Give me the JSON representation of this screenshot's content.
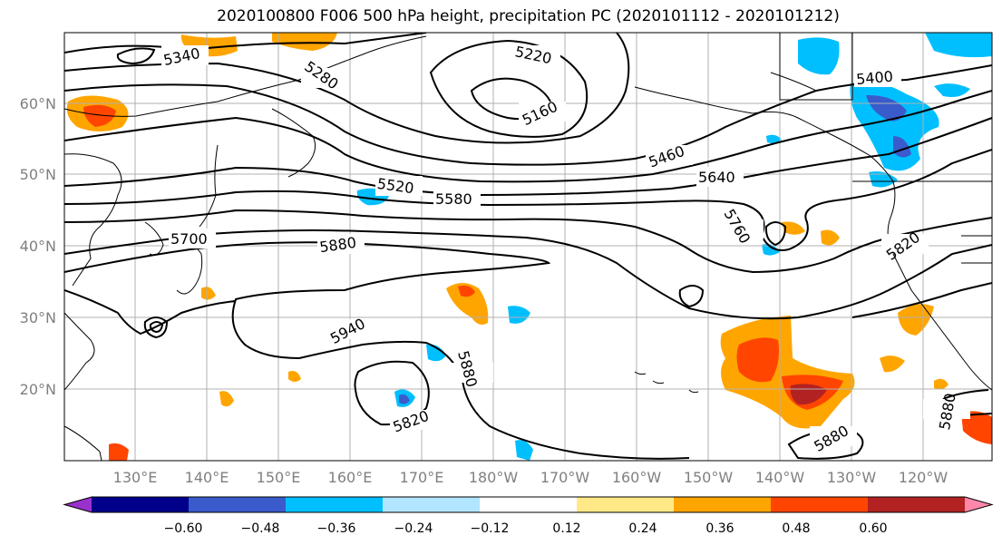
{
  "title": "2020100800 F006 500 hPa height, precipitation PC (2020101112 - 2020101212)",
  "lat_labels": [
    "60°N",
    "50°N",
    "40°N",
    "30°N",
    "20°N"
  ],
  "lon_labels": [
    "130°E",
    "140°E",
    "150°E",
    "160°E",
    "170°E",
    "180°W",
    "170°W",
    "160°W",
    "150°W",
    "140°W",
    "130°W",
    "120°W"
  ],
  "contour_labels": [
    "5340",
    "5280",
    "5220",
    "5160",
    "5400",
    "5460",
    "5640",
    "5520",
    "5580",
    "5760",
    "5700",
    "5880",
    "5820",
    "5940",
    "5880",
    "5820",
    "5880",
    "5880"
  ],
  "colorbar": {
    "colors": [
      "#9932cc",
      "#00008b",
      "#3a5bcc",
      "#00bfff",
      "#b2e5ff",
      "#ffffff",
      "#ffe986",
      "#ffa500",
      "#ff4500",
      "#b22222",
      "#ff88aa"
    ],
    "tick_labels": [
      "−0.60",
      "−0.48",
      "−0.36",
      "−0.24",
      "−0.12",
      "0.12",
      "0.24",
      "0.36",
      "0.48",
      "0.60"
    ]
  }
}
